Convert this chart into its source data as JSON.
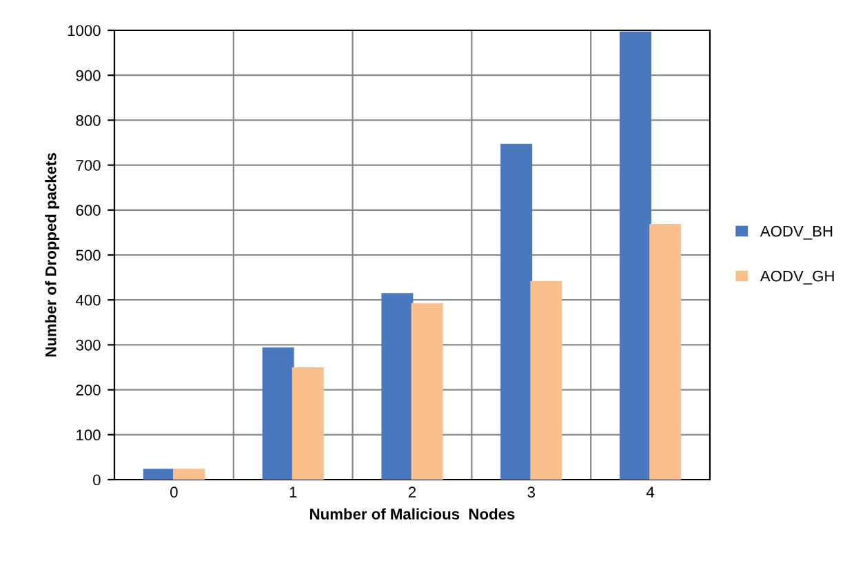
{
  "chart_data": {
    "type": "bar",
    "xlabel": "Number of Malicious  Nodes",
    "ylabel": "Number of Dropped packets",
    "categories": [
      "0",
      "1",
      "2",
      "3",
      "4"
    ],
    "series": [
      {
        "name": "AODV_BH",
        "color": "#4a78be",
        "values": [
          22,
          292,
          413,
          745,
          995
        ]
      },
      {
        "name": "AODV_GH",
        "color": "#f9c08e",
        "values": [
          22,
          248,
          390,
          440,
          567
        ]
      }
    ],
    "ylim": [
      0,
      1000
    ],
    "yticks": [
      0,
      100,
      200,
      300,
      400,
      500,
      600,
      700,
      800,
      900,
      1000
    ],
    "grid": true,
    "legend": "right"
  }
}
